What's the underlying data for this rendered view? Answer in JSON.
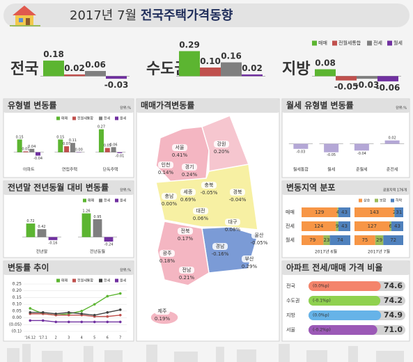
{
  "header": {
    "title_date": "2017년 7월",
    "title": "전국주택가격동향"
  },
  "chart_data": [
    {
      "type": "bar",
      "categories": [
        "전국",
        "수도권",
        "지방"
      ],
      "ylim": [
        -0.15,
        0.35
      ],
      "series": [
        {
          "name": "매매",
          "color": "#5cb531",
          "values": [
            0.18,
            0.29,
            0.08
          ],
          "value_labels": [
            "0.18",
            "0.29",
            "0.08"
          ]
        },
        {
          "name": "전월세통합",
          "color": "#c0504d",
          "values": [
            0.02,
            0.1,
            -0.05
          ],
          "value_labels": [
            "0.02",
            "0.10",
            "-0.05"
          ]
        },
        {
          "name": "전세",
          "color": "#7f7f7f",
          "values": [
            0.06,
            0.16,
            -0.03
          ],
          "value_labels": [
            "0.06",
            "0.16",
            "-0.03"
          ]
        },
        {
          "name": "월세",
          "color": "#7030a0",
          "values": [
            -0.03,
            0.02,
            -0.06
          ],
          "value_labels": [
            "-0.03",
            "0.02",
            "-0.06"
          ]
        }
      ]
    },
    {
      "type": "bar",
      "title": "유형별 변동률",
      "unit": "단위:%",
      "categories": [
        "아파트",
        "연립주택",
        "단독주택"
      ],
      "ylim": [
        -0.06,
        0.3
      ],
      "series": [
        {
          "name": "매매",
          "color": "#5cb531",
          "values": [
            0.15,
            0.15,
            0.27
          ],
          "value_labels": [
            "0.15",
            "0.15",
            "0.27"
          ]
        },
        {
          "name": "전월세통합",
          "color": "#c0504d",
          "values": [
            0.01,
            0.07,
            0.05
          ],
          "value_labels": [
            "0.01",
            "0.07",
            "0.05"
          ]
        },
        {
          "name": "전세",
          "color": "#7f7f7f",
          "values": [
            0.04,
            0.11,
            0.06
          ],
          "value_labels": [
            "0.04",
            "0.11",
            "0.06"
          ]
        },
        {
          "name": "월세",
          "color": "#7030a0",
          "values": [
            -0.04,
            0.0,
            -0.01
          ],
          "value_labels": [
            "-0.04",
            "0.00",
            "-0.01"
          ]
        }
      ]
    },
    {
      "type": "bar",
      "title": "월세 유형별 변동률",
      "unit": "단위:%",
      "categories": [
        "월세통합",
        "월세",
        "준월세",
        "준전세"
      ],
      "values": [
        -0.03,
        -0.05,
        -0.04,
        0.02
      ],
      "color": "#b4a7d6",
      "ylim": [
        -0.08,
        0.06
      ]
    },
    {
      "type": "bar",
      "title": "전년말 전년동월 대비 변동률",
      "unit": "단위:%",
      "categories": [
        "전년말",
        "전년동월"
      ],
      "ylim": [
        -0.35,
        1.5
      ],
      "series": [
        {
          "name": "매매",
          "color": "#5cb531",
          "values": [
            0.72,
            1.26
          ]
        },
        {
          "name": "전세",
          "color": "#7f7f7f",
          "values": [
            0.42,
            0.95
          ]
        },
        {
          "name": "월세",
          "color": "#7030a0",
          "values": [
            -0.16,
            -0.24
          ]
        }
      ]
    },
    {
      "type": "line",
      "title": "변동률 추이",
      "unit": "단위:%",
      "grid": true,
      "categories": [
        "'16.12",
        "'17.1",
        "2",
        "3",
        "4",
        "5",
        "6",
        "7"
      ],
      "ylim": [
        -0.1,
        0.25
      ],
      "yticks": [
        {
          "value": -0.1,
          "label": "(0.1)"
        },
        {
          "value": -0.05,
          "label": "(0.05)"
        },
        {
          "value": 0,
          "label": "0.00"
        },
        0.05,
        {
          "value": 0.1,
          "label": "0.10"
        },
        0.15,
        {
          "value": 0.2,
          "label": "0.20"
        },
        0.25
      ],
      "series": [
        {
          "name": "매매",
          "color": "#5cb531",
          "values": [
            0.07,
            0.03,
            0.02,
            0.03,
            0.05,
            0.1,
            0.16,
            0.18
          ]
        },
        {
          "name": "전월세통합",
          "color": "#c0504d",
          "values": [
            0.03,
            0.03,
            0.02,
            0.02,
            0.02,
            0.01,
            0.01,
            0.02
          ]
        },
        {
          "name": "전세",
          "color": "#404040",
          "values": [
            0.04,
            0.04,
            0.03,
            0.04,
            0.03,
            0.02,
            0.04,
            0.06
          ]
        },
        {
          "name": "월세",
          "color": "#7030a0",
          "values": [
            -0.02,
            -0.02,
            -0.03,
            -0.03,
            -0.03,
            -0.03,
            -0.03,
            -0.03
          ]
        }
      ]
    },
    {
      "type": "stacked_hbar",
      "title": "변동지역 분포",
      "subtitle": "공표지역 176개",
      "categories": [
        "매매",
        "전세",
        "월세"
      ],
      "groups": [
        "2017년 6월",
        "2017년 7월"
      ],
      "xlim": [
        0,
        176
      ],
      "series": [
        {
          "name": "상승",
          "color": "#f79646",
          "values": [
            [
              129,
              124,
              79
            ],
            [
              143,
              127,
              75
            ]
          ]
        },
        {
          "name": "보합",
          "color": "#9bbb59",
          "values": [
            [
              4,
              9,
              23
            ],
            [
              2,
              6,
              29
            ]
          ]
        },
        {
          "name": "하락",
          "color": "#4f81bd",
          "values": [
            [
              43,
              43,
              74
            ],
            [
              31,
              43,
              72
            ]
          ]
        }
      ]
    },
    {
      "type": "hbar",
      "title": "아파트 전세/매매 가격 비율",
      "categories": [
        "전국",
        "수도권",
        "지방",
        "서울"
      ],
      "values": [
        74.6,
        74.2,
        74.9,
        71.0
      ],
      "value_labels": [
        "74.6",
        "74.2",
        "74.9",
        "71.0"
      ],
      "change_labels": [
        "(0.0%p)",
        "(-0.1%p)",
        "(0.0%p)",
        "(-0.2%p)"
      ],
      "colors": [
        "#f4846b",
        "#8fd14f",
        "#66b3e8",
        "#9b59b6"
      ],
      "xlim": [
        0,
        100
      ]
    }
  ],
  "map": {
    "title": "매매가격변동률",
    "regions": [
      {
        "name": "서울",
        "label": "0.41%"
      },
      {
        "name": "강원",
        "label": "0.20%"
      },
      {
        "name": "인천",
        "label": "0.14%"
      },
      {
        "name": "경기",
        "label": "0.24%"
      },
      {
        "name": "세종",
        "label": "0.69%"
      },
      {
        "name": "충북",
        "label": "-0.05%"
      },
      {
        "name": "충남",
        "label": "0.00%"
      },
      {
        "name": "대전",
        "label": "0.06%"
      },
      {
        "name": "경북",
        "label": "-0.04%"
      },
      {
        "name": "대구",
        "label": "0.08%"
      },
      {
        "name": "전북",
        "label": "0.17%"
      },
      {
        "name": "울산",
        "label": "-0.05%"
      },
      {
        "name": "경남",
        "label": "-0.16%"
      },
      {
        "name": "광주",
        "label": "0.18%"
      },
      {
        "name": "부산",
        "label": "0.29%"
      },
      {
        "name": "전남",
        "label": "0.21%"
      },
      {
        "name": "제주",
        "label": "0.19%"
      }
    ]
  }
}
